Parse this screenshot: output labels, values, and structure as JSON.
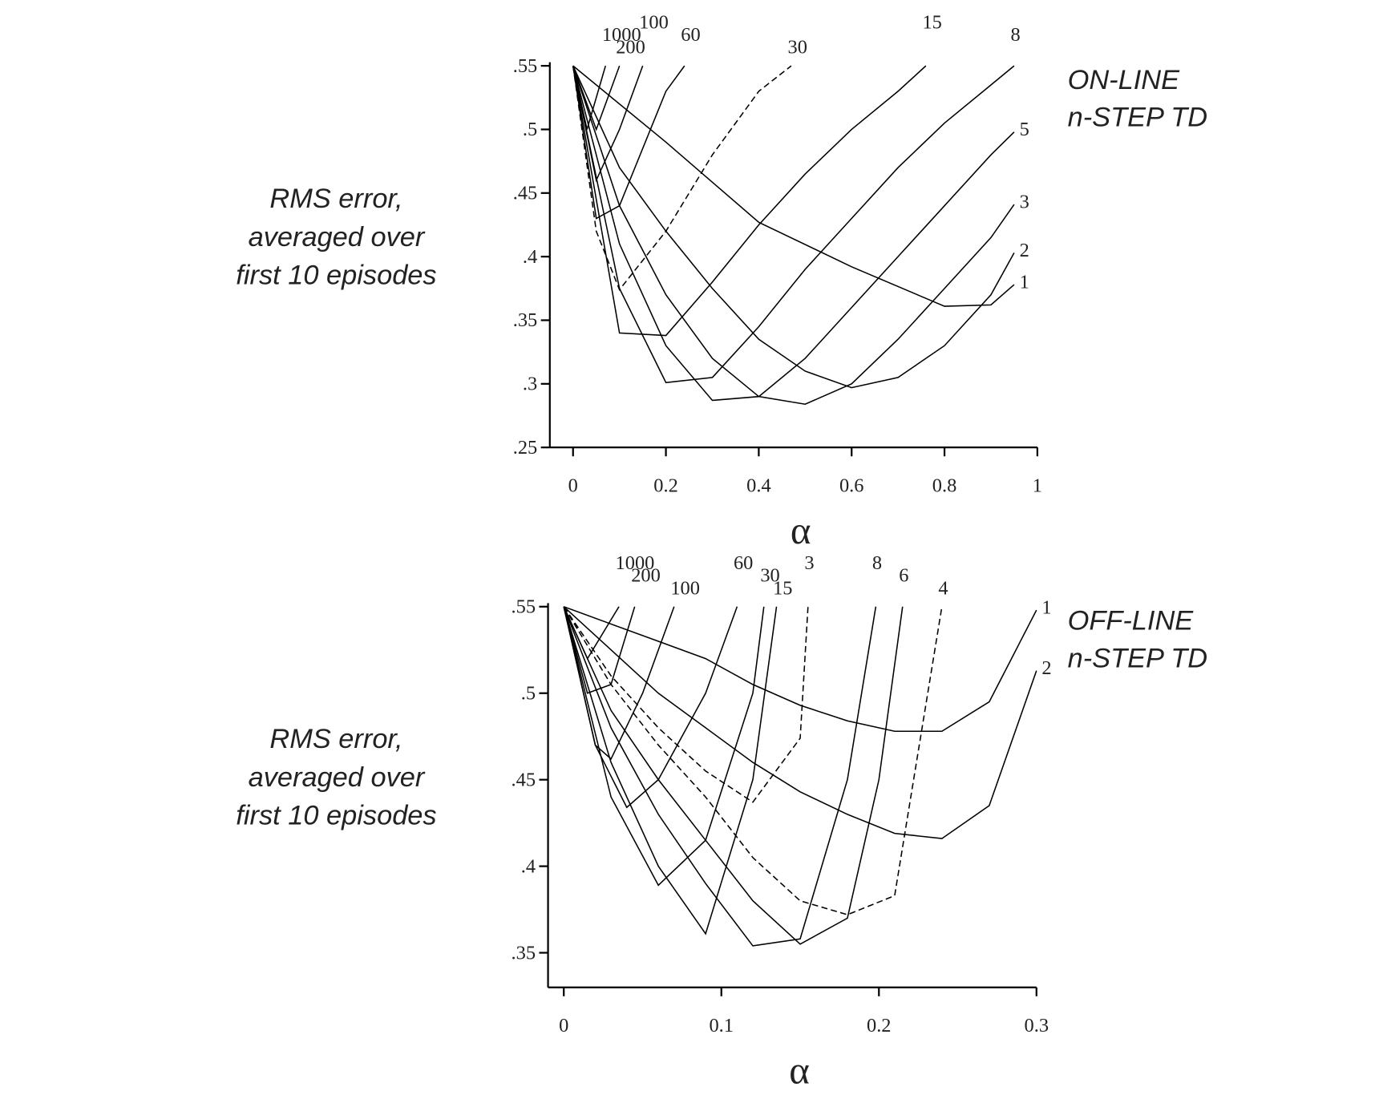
{
  "chart_data": [
    {
      "type": "line",
      "title": [
        "ON-LINE",
        "n-STEP TD"
      ],
      "xlabel": "α",
      "ylabel": [
        "RMS error,",
        "averaged over",
        "first 10 episodes"
      ],
      "xlim": [
        -0.05,
        1
      ],
      "ylim": [
        0.25,
        0.55
      ],
      "xticks": [
        0,
        0.2,
        0.4,
        0.6,
        0.8,
        1
      ],
      "yticks": [
        {
          "value": 0.25,
          "label": ".25"
        },
        {
          "value": 0.3,
          "label": ".3"
        },
        {
          "value": 0.35,
          "label": ".35"
        },
        {
          "value": 0.4,
          "label": ".4"
        },
        {
          "value": 0.45,
          "label": ".45"
        },
        {
          "value": 0.5,
          "label": ".5"
        },
        {
          "value": 0.55,
          "label": ".55"
        }
      ],
      "color": "#000000",
      "series": [
        {
          "name": "1",
          "x": [
            0,
            0.2,
            0.4,
            0.6,
            0.8,
            0.9,
            0.95
          ],
          "values": [
            0.55,
            0.49,
            0.427,
            0.392,
            0.361,
            0.362,
            0.378
          ]
        },
        {
          "name": "2",
          "x": [
            0,
            0.1,
            0.2,
            0.3,
            0.4,
            0.5,
            0.6,
            0.7,
            0.8,
            0.9,
            0.95
          ],
          "values": [
            0.55,
            0.47,
            0.42,
            0.375,
            0.335,
            0.31,
            0.297,
            0.305,
            0.33,
            0.37,
            0.403
          ]
        },
        {
          "name": "3",
          "x": [
            0,
            0.1,
            0.2,
            0.3,
            0.4,
            0.5,
            0.6,
            0.7,
            0.8,
            0.9,
            0.95
          ],
          "values": [
            0.55,
            0.44,
            0.37,
            0.32,
            0.29,
            0.284,
            0.3,
            0.335,
            0.375,
            0.415,
            0.441
          ]
        },
        {
          "name": "5",
          "x": [
            0,
            0.1,
            0.2,
            0.3,
            0.4,
            0.5,
            0.6,
            0.7,
            0.8,
            0.9,
            0.95
          ],
          "values": [
            0.55,
            0.41,
            0.33,
            0.287,
            0.29,
            0.32,
            0.36,
            0.4,
            0.44,
            0.48,
            0.498
          ]
        },
        {
          "name": "8",
          "x": [
            0,
            0.1,
            0.2,
            0.3,
            0.4,
            0.5,
            0.6,
            0.7,
            0.8,
            0.9,
            0.95
          ],
          "values": [
            0.55,
            0.375,
            0.301,
            0.305,
            0.345,
            0.39,
            0.43,
            0.47,
            0.505,
            0.535,
            0.55
          ]
        },
        {
          "name": "15",
          "x": [
            0,
            0.1,
            0.2,
            0.3,
            0.4,
            0.5,
            0.6,
            0.7,
            0.76
          ],
          "values": [
            0.55,
            0.34,
            0.338,
            0.38,
            0.425,
            0.465,
            0.5,
            0.53,
            0.55
          ]
        },
        {
          "name": "30",
          "dashed": true,
          "x": [
            0,
            0.05,
            0.1,
            0.2,
            0.3,
            0.4,
            0.47
          ],
          "values": [
            0.55,
            0.42,
            0.374,
            0.42,
            0.48,
            0.53,
            0.55
          ]
        },
        {
          "name": "60",
          "x": [
            0,
            0.05,
            0.1,
            0.2,
            0.24
          ],
          "values": [
            0.55,
            0.43,
            0.44,
            0.53,
            0.55
          ]
        },
        {
          "name": "100",
          "x": [
            0,
            0.05,
            0.1,
            0.15
          ],
          "values": [
            0.55,
            0.46,
            0.5,
            0.55
          ]
        },
        {
          "name": "200",
          "x": [
            0,
            0.05,
            0.1
          ],
          "values": [
            0.55,
            0.5,
            0.55
          ]
        },
        {
          "name": "1000",
          "x": [
            0,
            0.03,
            0.07
          ],
          "values": [
            0.55,
            0.5,
            0.55
          ]
        }
      ]
    },
    {
      "type": "line",
      "title": [
        "OFF-LINE",
        "n-STEP TD"
      ],
      "xlabel": "α",
      "ylabel": [
        "RMS error,",
        "averaged over",
        "first 10 episodes"
      ],
      "xlim": [
        -0.01,
        0.3
      ],
      "ylim": [
        0.33,
        0.55
      ],
      "xticks": [
        0,
        0.1,
        0.2,
        0.3
      ],
      "yticks": [
        {
          "value": 0.35,
          "label": ".35"
        },
        {
          "value": 0.4,
          "label": ".4"
        },
        {
          "value": 0.45,
          "label": ".45"
        },
        {
          "value": 0.5,
          "label": ".5"
        },
        {
          "value": 0.55,
          "label": ".55"
        }
      ],
      "color": "#000000",
      "series": [
        {
          "name": "1",
          "x": [
            0,
            0.03,
            0.06,
            0.09,
            0.12,
            0.15,
            0.18,
            0.21,
            0.24,
            0.27,
            0.3
          ],
          "values": [
            0.55,
            0.54,
            0.53,
            0.52,
            0.505,
            0.493,
            0.484,
            0.478,
            0.478,
            0.495,
            0.548
          ]
        },
        {
          "name": "2",
          "x": [
            0,
            0.03,
            0.06,
            0.09,
            0.12,
            0.15,
            0.18,
            0.21,
            0.24,
            0.27,
            0.3
          ],
          "values": [
            0.55,
            0.525,
            0.5,
            0.48,
            0.46,
            0.443,
            0.43,
            0.419,
            0.416,
            0.435,
            0.513
          ]
        },
        {
          "name": "3",
          "dashed": true,
          "x": [
            0,
            0.03,
            0.06,
            0.09,
            0.12,
            0.15,
            0.155
          ],
          "values": [
            0.55,
            0.51,
            0.48,
            0.455,
            0.437,
            0.474,
            0.55
          ]
        },
        {
          "name": "4",
          "dashed": true,
          "x": [
            0,
            0.03,
            0.06,
            0.09,
            0.12,
            0.15,
            0.18,
            0.21,
            0.24
          ],
          "values": [
            0.55,
            0.505,
            0.47,
            0.44,
            0.405,
            0.38,
            0.372,
            0.383,
            0.55
          ]
        },
        {
          "name": "6",
          "x": [
            0,
            0.03,
            0.06,
            0.09,
            0.12,
            0.15,
            0.18,
            0.2,
            0.215
          ],
          "values": [
            0.55,
            0.49,
            0.45,
            0.415,
            0.38,
            0.355,
            0.37,
            0.45,
            0.55
          ]
        },
        {
          "name": "8",
          "x": [
            0,
            0.03,
            0.06,
            0.09,
            0.12,
            0.15,
            0.18,
            0.198
          ],
          "values": [
            0.55,
            0.48,
            0.43,
            0.39,
            0.354,
            0.358,
            0.45,
            0.55
          ]
        },
        {
          "name": "15",
          "x": [
            0,
            0.03,
            0.06,
            0.09,
            0.12,
            0.135
          ],
          "values": [
            0.55,
            0.46,
            0.4,
            0.361,
            0.45,
            0.55
          ]
        },
        {
          "name": "30",
          "x": [
            0,
            0.03,
            0.06,
            0.09,
            0.12,
            0.127
          ],
          "values": [
            0.55,
            0.44,
            0.389,
            0.415,
            0.5,
            0.55
          ]
        },
        {
          "name": "60",
          "x": [
            0,
            0.02,
            0.04,
            0.06,
            0.09,
            0.11
          ],
          "values": [
            0.55,
            0.47,
            0.434,
            0.45,
            0.5,
            0.55
          ]
        },
        {
          "name": "100",
          "x": [
            0,
            0.02,
            0.03,
            0.05,
            0.07
          ],
          "values": [
            0.55,
            0.47,
            0.462,
            0.5,
            0.55
          ]
        },
        {
          "name": "200",
          "x": [
            0,
            0.015,
            0.03,
            0.045
          ],
          "values": [
            0.55,
            0.5,
            0.505,
            0.55
          ]
        },
        {
          "name": "1000",
          "x": [
            0,
            0.015,
            0.035
          ],
          "values": [
            0.55,
            0.52,
            0.55
          ]
        }
      ]
    }
  ]
}
